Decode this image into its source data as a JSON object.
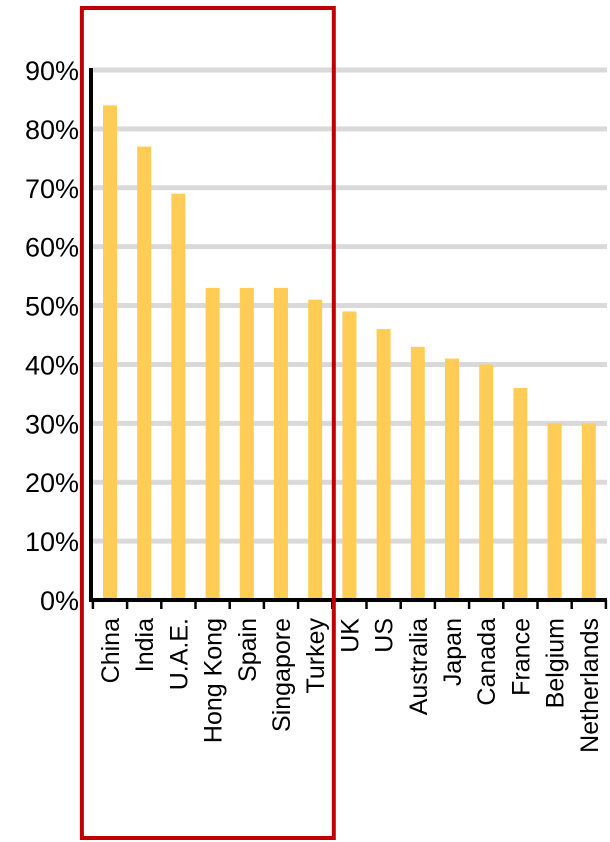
{
  "chart_data": {
    "type": "bar",
    "title": "",
    "xlabel": "",
    "ylabel": "",
    "categories": [
      "China",
      "India",
      "U.A.E.",
      "Hong Kong",
      "Spain",
      "Singapore",
      "Turkey",
      "UK",
      "US",
      "Australia",
      "Japan",
      "Canada",
      "France",
      "Belgium",
      "Netherlands"
    ],
    "values": [
      84,
      77,
      69,
      53,
      53,
      53,
      51,
      49,
      46,
      43,
      41,
      40,
      36,
      30,
      30
    ],
    "ylim": [
      0,
      90
    ],
    "yticks": [
      0,
      10,
      20,
      30,
      40,
      50,
      60,
      70,
      80,
      90
    ],
    "ytick_labels": [
      "0%",
      "10%",
      "20%",
      "30%",
      "40%",
      "50%",
      "60%",
      "70%",
      "80%",
      "90%"
    ],
    "grid": true,
    "legend": "none",
    "highlight": {
      "categories": [
        "China",
        "India",
        "U.A.E.",
        "Hong Kong",
        "Spain",
        "Singapore",
        "Turkey"
      ],
      "style": "box outline"
    }
  },
  "colors": {
    "bar": "#ffcc55",
    "grid": "#d9d9d9",
    "axis": "#000000",
    "highlight_box": "#c00000"
  }
}
